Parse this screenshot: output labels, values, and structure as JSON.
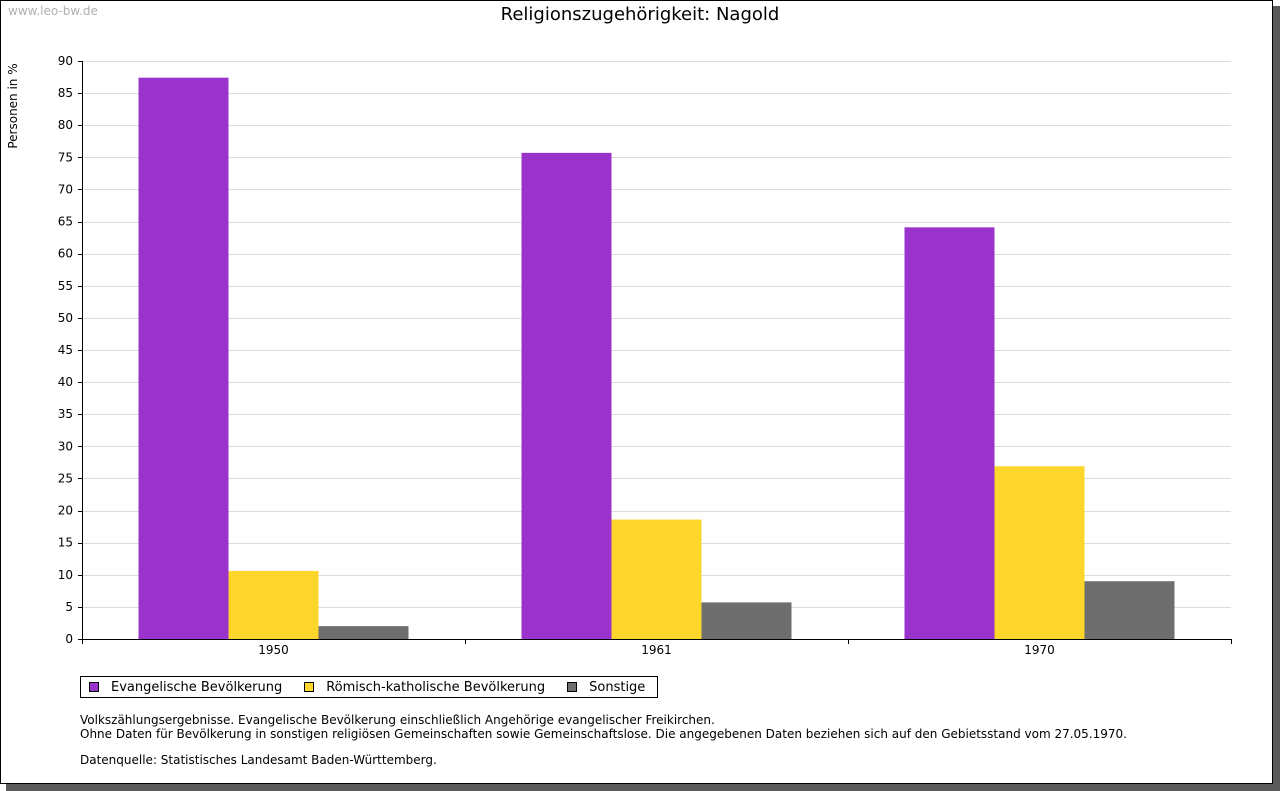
{
  "watermark": "www.leo-bw.de",
  "chart_data": {
    "type": "bar",
    "title": "Religionszugehörigkeit: Nagold",
    "xlabel": "",
    "ylabel": "Personen in %",
    "ylim": [
      0,
      90
    ],
    "ytick_step": 5,
    "grid": true,
    "categories": [
      "1950",
      "1961",
      "1970"
    ],
    "series": [
      {
        "name": "Evangelische Bevölkerung",
        "color": "#9933cc",
        "values": [
          87.4,
          75.7,
          64.1
        ]
      },
      {
        "name": "Römisch-katholische Bevölkerung",
        "color": "#fcd62b",
        "values": [
          10.6,
          18.6,
          26.9
        ]
      },
      {
        "name": "Sonstige",
        "color": "#6e6e6e",
        "values": [
          2.0,
          5.7,
          9.0
        ]
      }
    ],
    "legend_position": "bottom-left"
  },
  "footnotes": {
    "line1": "Volkszählungsergebnisse. Evangelische Bevölkerung einschließlich Angehörige evangelischer Freikirchen.",
    "line2": "Ohne Daten für Bevölkerung in sonstigen religiösen Gemeinschaften sowie Gemeinschaftslose. Die angegebenen Daten beziehen sich auf den Gebietsstand vom 27.05.1970.",
    "source": "Datenquelle: Statistisches Landesamt Baden-Württemberg."
  }
}
